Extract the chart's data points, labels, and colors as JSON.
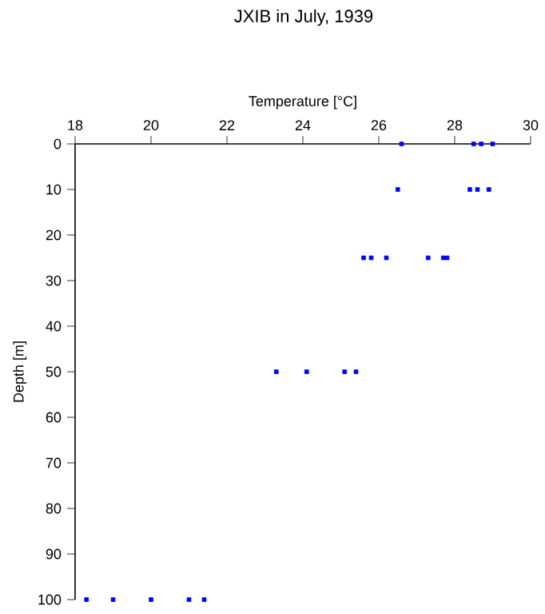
{
  "chart_data": {
    "type": "scatter",
    "title": "JXIB in July, 1939",
    "xlabel": "Temperature [°C]",
    "ylabel": "Depth [m]",
    "x": [
      26.6,
      28.5,
      28.7,
      29.0,
      26.5,
      28.4,
      28.6,
      28.9,
      25.6,
      25.8,
      26.2,
      27.3,
      27.7,
      27.8,
      23.3,
      24.1,
      25.1,
      25.4,
      18.3,
      19.0,
      20.0,
      21.0,
      21.4
    ],
    "values": [
      0,
      0,
      0,
      0,
      10,
      10,
      10,
      10,
      25,
      25,
      25,
      25,
      25,
      25,
      50,
      50,
      50,
      50,
      100,
      100,
      100,
      100,
      100
    ],
    "color": "#0000ff",
    "marker": "square",
    "xlim": [
      18,
      30
    ],
    "xticks": [
      18,
      20,
      22,
      24,
      26,
      28,
      30
    ],
    "ylim": [
      100,
      0
    ],
    "yticks": [
      0,
      10,
      20,
      30,
      40,
      50,
      60,
      70,
      80,
      90,
      100
    ]
  }
}
